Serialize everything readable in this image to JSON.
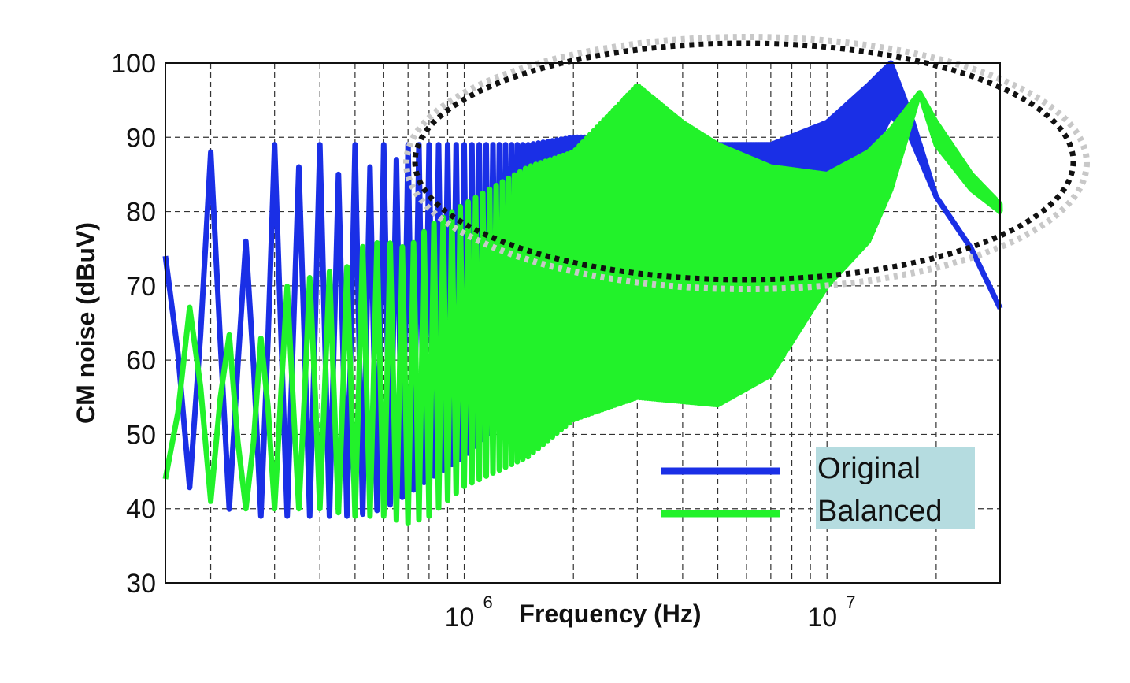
{
  "chart_data": {
    "type": "line",
    "title": "",
    "xlabel": "Frequency (Hz)",
    "ylabel": "CM noise (dBuV)",
    "xscale": "log",
    "xlim": [
      150000,
      30000000
    ],
    "ylim": [
      30,
      100
    ],
    "yticks": [
      30,
      40,
      50,
      60,
      70,
      80,
      90,
      100
    ],
    "yticklabels": [
      "30",
      "40",
      "50",
      "60",
      "70",
      "80",
      "90",
      "100"
    ],
    "xticks": [
      {
        "value": 1000000,
        "base": "10",
        "exp": "6"
      },
      {
        "value": 10000000,
        "base": "10",
        "exp": "7"
      }
    ],
    "grid": true,
    "legend_position": "bottom-right",
    "annotation": "dotted ellipse around 0.6–30 MHz upper envelope",
    "series": [
      {
        "name": "Original",
        "color": "#1a2fe6",
        "line_width": 7,
        "harmonic_start_hz": 150000,
        "harmonic_step_hz": 50000,
        "peaks": [
          [
            150000,
            74
          ],
          [
            200000,
            88
          ],
          [
            250000,
            76
          ],
          [
            300000,
            89
          ],
          [
            350000,
            86
          ],
          [
            400000,
            89
          ],
          [
            450000,
            85
          ],
          [
            500000,
            89
          ],
          [
            550000,
            86
          ],
          [
            600000,
            89
          ],
          [
            650000,
            87
          ],
          [
            700000,
            89
          ],
          [
            800000,
            89
          ],
          [
            1000000,
            89
          ],
          [
            1500000,
            89
          ],
          [
            2000000,
            90
          ],
          [
            3000000,
            90
          ],
          [
            5000000,
            89
          ],
          [
            7000000,
            89
          ],
          [
            10000000,
            92
          ],
          [
            13000000,
            97
          ],
          [
            15000000,
            100
          ],
          [
            17000000,
            93
          ],
          [
            20000000,
            82
          ],
          [
            25000000,
            75
          ],
          [
            30000000,
            67
          ]
        ],
        "troughs": [
          [
            150000,
            45
          ],
          [
            200000,
            41
          ],
          [
            250000,
            39
          ],
          [
            300000,
            39
          ],
          [
            400000,
            39
          ],
          [
            500000,
            39
          ],
          [
            600000,
            40
          ],
          [
            700000,
            42
          ],
          [
            800000,
            44
          ],
          [
            1000000,
            47
          ],
          [
            1500000,
            55
          ],
          [
            2000000,
            60
          ],
          [
            3000000,
            62
          ],
          [
            4000000,
            57
          ],
          [
            5000000,
            56
          ],
          [
            7000000,
            60
          ],
          [
            10000000,
            76
          ],
          [
            13000000,
            87
          ],
          [
            15000000,
            93
          ],
          [
            17000000,
            90
          ],
          [
            20000000,
            82
          ],
          [
            25000000,
            75
          ],
          [
            30000000,
            67
          ]
        ]
      },
      {
        "name": "Balanced",
        "color": "#22f22a",
        "line_width": 7,
        "harmonic_start_hz": 150000,
        "harmonic_step_hz": 50000,
        "peaks": [
          [
            150000,
            58
          ],
          [
            200000,
            75
          ],
          [
            250000,
            53
          ],
          [
            300000,
            72
          ],
          [
            350000,
            68
          ],
          [
            400000,
            74
          ],
          [
            450000,
            70
          ],
          [
            500000,
            75
          ],
          [
            600000,
            76
          ],
          [
            700000,
            75
          ],
          [
            800000,
            78
          ],
          [
            1000000,
            81
          ],
          [
            1500000,
            86
          ],
          [
            2000000,
            88
          ],
          [
            3000000,
            97
          ],
          [
            4000000,
            92
          ],
          [
            5000000,
            89
          ],
          [
            7000000,
            86
          ],
          [
            10000000,
            85
          ],
          [
            13000000,
            88
          ],
          [
            15000000,
            91
          ],
          [
            18000000,
            96
          ],
          [
            20000000,
            92
          ],
          [
            25000000,
            85
          ],
          [
            30000000,
            81
          ]
        ],
        "troughs": [
          [
            150000,
            44
          ],
          [
            200000,
            41
          ],
          [
            250000,
            40
          ],
          [
            300000,
            40
          ],
          [
            400000,
            40
          ],
          [
            500000,
            39
          ],
          [
            600000,
            39
          ],
          [
            700000,
            38
          ],
          [
            800000,
            39
          ],
          [
            1000000,
            43
          ],
          [
            1500000,
            47
          ],
          [
            2000000,
            52
          ],
          [
            3000000,
            55
          ],
          [
            5000000,
            54
          ],
          [
            7000000,
            58
          ],
          [
            10000000,
            70
          ],
          [
            13000000,
            76
          ],
          [
            15000000,
            83
          ],
          [
            18000000,
            96
          ],
          [
            20000000,
            89
          ],
          [
            25000000,
            83
          ],
          [
            30000000,
            80
          ]
        ]
      }
    ]
  }
}
